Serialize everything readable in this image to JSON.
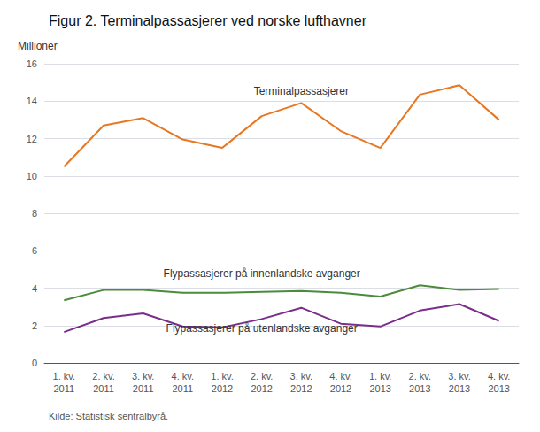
{
  "chart_data": {
    "type": "line",
    "title": "Figur 2. Terminalpassasjerer ved norske lufthavner",
    "ylabel": "Millioner",
    "source": "Kilde: Statistisk sentralbyrå.",
    "categories": [
      "1. kv.\n2011",
      "2. kv.\n2011",
      "3. kv.\n2011",
      "4. kv.\n2011",
      "1. kv.\n2012",
      "2. kv.\n2012",
      "3. kv.\n2012",
      "4. kv.\n2012",
      "1. kv.\n2013",
      "2. kv.\n2013",
      "3. kv.\n2013",
      "4. kv.\n2013"
    ],
    "series": [
      {
        "name": "Terminalpassasjerer",
        "color": "#E87722",
        "values": [
          10.5,
          12.7,
          13.1,
          11.95,
          11.5,
          13.2,
          13.9,
          12.4,
          11.5,
          14.35,
          14.85,
          13.0
        ]
      },
      {
        "name": "Flypassasjerer på innenlandske avganger",
        "color": "#4B8B3B",
        "values": [
          3.35,
          3.9,
          3.9,
          3.75,
          3.75,
          3.8,
          3.85,
          3.75,
          3.55,
          4.15,
          3.9,
          3.95
        ]
      },
      {
        "name": "Flypassasjerer på utenlandske avganger",
        "color": "#7B2D8B",
        "values": [
          1.65,
          2.4,
          2.65,
          1.95,
          1.9,
          2.35,
          2.95,
          2.1,
          1.95,
          2.8,
          3.15,
          2.25
        ]
      }
    ],
    "annotations": [
      {
        "text": "Terminalpassasjerer",
        "x": 5.8,
        "y": 14.25
      },
      {
        "text": "Flypassasjerer på innenlandske avganger",
        "x": 5.0,
        "y": 4.52
      },
      {
        "text": "Flypassasjerer på utenlandske avganger",
        "x": 4.7,
        "y": 1.55
      }
    ],
    "ylim": [
      0,
      16
    ],
    "yticks": [
      0,
      2,
      4,
      6,
      8,
      10,
      12,
      14,
      16
    ],
    "grid": true
  }
}
